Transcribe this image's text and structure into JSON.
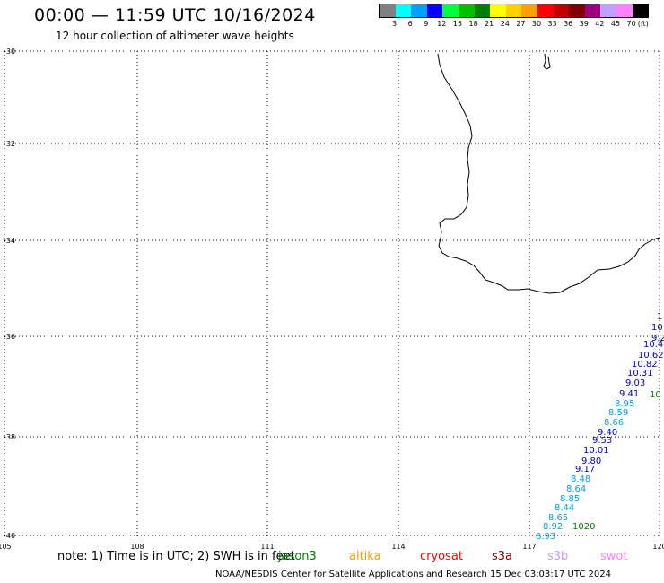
{
  "header": {
    "title": "00:00 — 11:59 UTC 10/16/2024",
    "subtitle": "12 hour collection of altimeter wave heights"
  },
  "legend": {
    "unit": "(ft)",
    "colors": [
      "#808080",
      "#00ffff",
      "#00a0ff",
      "#0000ff",
      "#00ff40",
      "#00c000",
      "#008000",
      "#ffff00",
      "#ffd000",
      "#ffa000",
      "#ff0000",
      "#c00000",
      "#800000",
      "#a00080",
      "#c0a0ff",
      "#ff80ff",
      "#000000"
    ],
    "labels": [
      "3",
      "6",
      "9",
      "12",
      "15",
      "18",
      "21",
      "24",
      "27",
      "30",
      "33",
      "36",
      "39",
      "42",
      "45",
      "70"
    ]
  },
  "axes": {
    "lat_labels": [
      "-30",
      "-32",
      "-34",
      "-36",
      "-38",
      "-40"
    ],
    "lon_labels": [
      "105",
      "108",
      "111",
      "114",
      "117",
      "120"
    ]
  },
  "swh_labels": [
    {
      "text": "1",
      "color": "#0000c0"
    },
    {
      "text": "10",
      "color": "#0000c0"
    },
    {
      "text": "9.2",
      "color": "#0000c0"
    },
    {
      "text": "10.4",
      "color": "#0000c0"
    },
    {
      "text": "10.62",
      "color": "#0000c0"
    },
    {
      "text": "10.82",
      "color": "#0000c0"
    },
    {
      "text": "10.31",
      "color": "#0000c0"
    },
    {
      "text": "9.03",
      "color": "#0000c0"
    },
    {
      "text": "9.41",
      "color": "#0000c0"
    },
    {
      "text": "8.95",
      "color": "#00a0e0"
    },
    {
      "text": "8.59",
      "color": "#00a0e0"
    },
    {
      "text": "8.66",
      "color": "#00a0e0"
    },
    {
      "text": "9.40",
      "color": "#0000c0"
    },
    {
      "text": "9.53",
      "color": "#0000c0"
    },
    {
      "text": "10.01",
      "color": "#0000c0"
    },
    {
      "text": "9.80",
      "color": "#0000c0"
    },
    {
      "text": "9.17",
      "color": "#0000c0"
    },
    {
      "text": "8.48",
      "color": "#00a0e0"
    },
    {
      "text": "8.64",
      "color": "#00a0e0"
    },
    {
      "text": "8.85",
      "color": "#00a0e0"
    },
    {
      "text": "8.44",
      "color": "#00a0e0"
    },
    {
      "text": "8.65",
      "color": "#00a0e0"
    },
    {
      "text": "8.92",
      "color": "#00a0e0"
    },
    {
      "text": "8.93",
      "color": "#00a0e0"
    }
  ],
  "buoy_labels": [
    {
      "text": "10",
      "color": "#008000"
    },
    {
      "text": "1020",
      "color": "#008000"
    }
  ],
  "note": "note: 1) Time is in UTC; 2) SWH is in feet",
  "satellites": [
    {
      "name": "jason3",
      "color": "#008000"
    },
    {
      "name": "altika",
      "color": "#ff9900"
    },
    {
      "name": "cryosat",
      "color": "#ff0000"
    },
    {
      "name": "s3a",
      "color": "#800000"
    },
    {
      "name": "s3b",
      "color": "#c0a0ff"
    },
    {
      "name": "swot",
      "color": "#ff80ff"
    }
  ],
  "footer": "NOAA/NESDIS Center for Satellite Applications and Research    15 Dec 03:03:17 UTC 2024"
}
